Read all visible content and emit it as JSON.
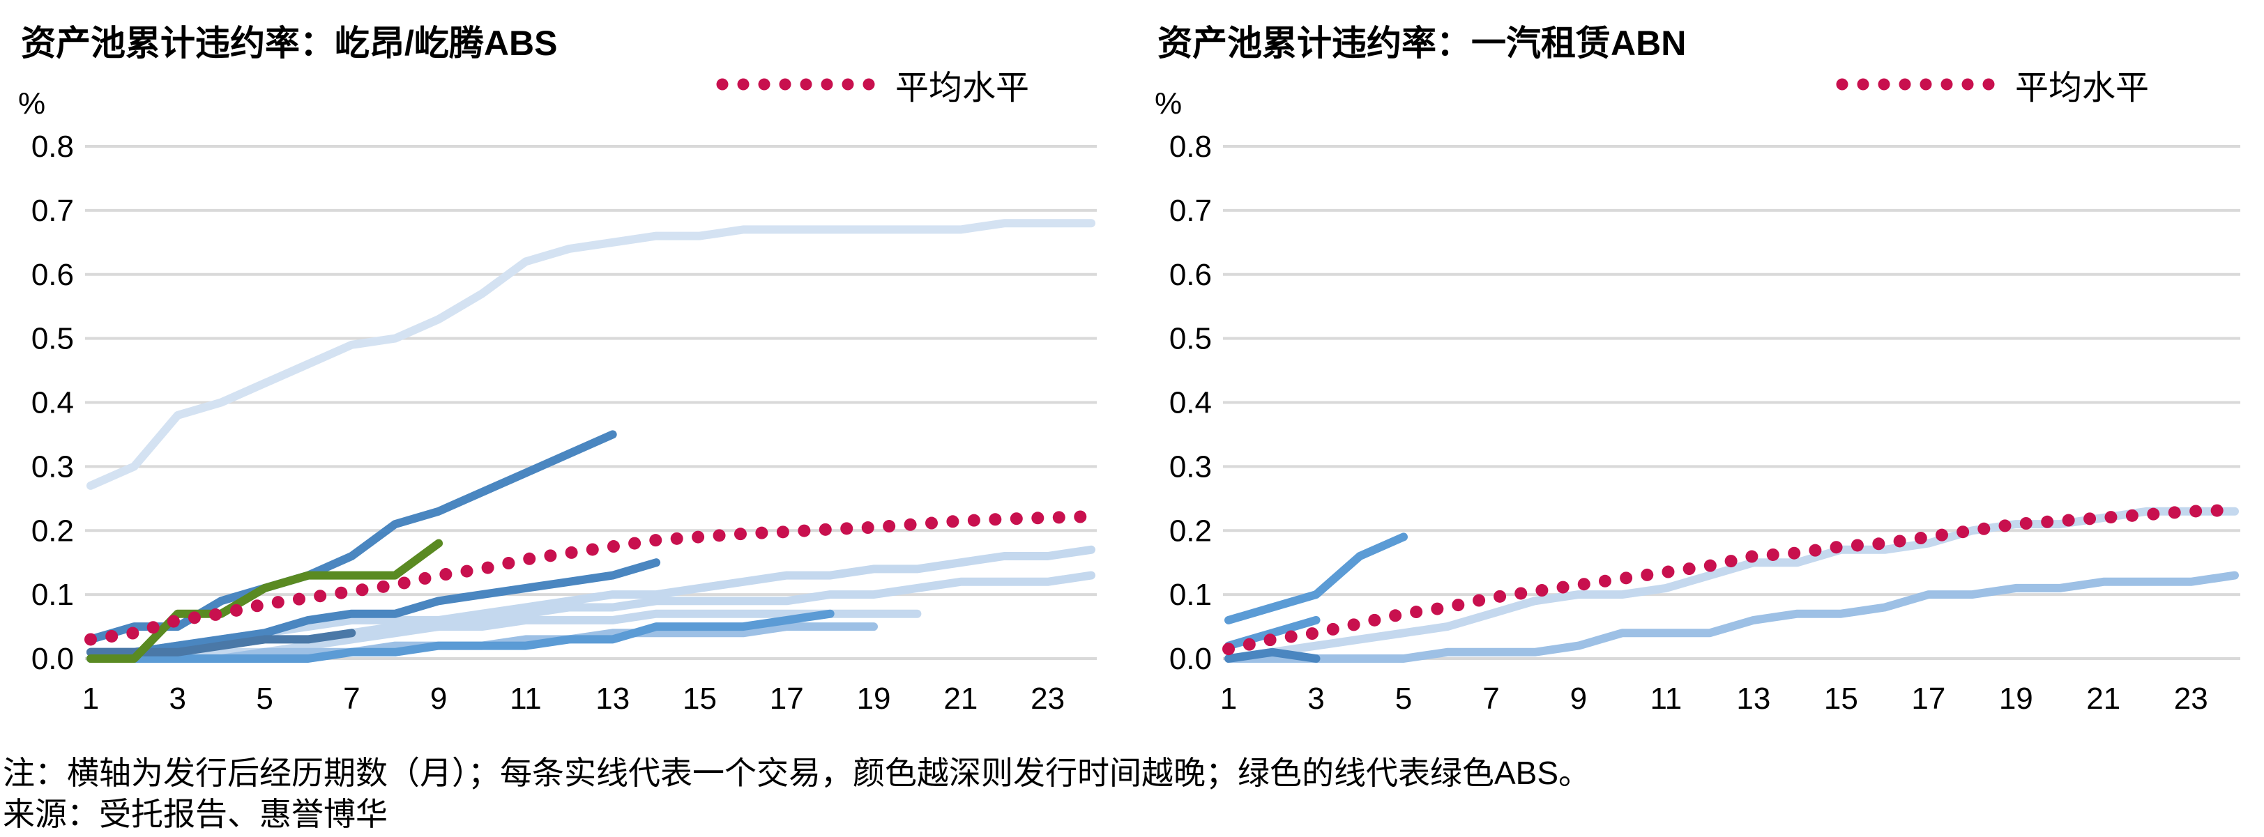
{
  "legend_label": "平均水平",
  "note": "注：横轴为发行后经历期数（月）；每条实线代表一个交易，颜色越深则发行时间越晚；绿色的线代表绿色ABS。",
  "source": "来源：受托报告、惠誉博华",
  "colors": {
    "average": "#C8104E",
    "grid": "#D9D9D9",
    "green": "#5A8A22",
    "blue_darkest": "#4A78A7",
    "blue_dark": "#4A86C0",
    "blue_mid": "#5B9BD5",
    "blue_light": "#9DC0E5",
    "blue_lighter": "#C4D8EE",
    "blue_lightest": "#D4E2F2"
  },
  "chart_data": [
    {
      "type": "line",
      "title": "资产池累计违约率：屹昂/屹腾ABS",
      "ylabel": "%",
      "ylim": [
        0,
        0.8
      ],
      "yticks": [
        "0.0",
        "0.1",
        "0.2",
        "0.3",
        "0.4",
        "0.5",
        "0.6",
        "0.7",
        "0.8"
      ],
      "xlim": [
        1,
        24
      ],
      "xticks": [
        1,
        3,
        5,
        7,
        9,
        11,
        13,
        15,
        17,
        19,
        21,
        23
      ],
      "grid": true,
      "legend": "top-right",
      "average": {
        "name": "平均水平",
        "x": [
          1,
          2,
          3,
          4,
          5,
          6,
          7,
          8,
          9,
          10,
          11,
          12,
          13,
          14,
          15,
          16,
          17,
          18,
          19,
          20,
          21,
          22,
          23,
          24
        ],
        "y": [
          0.03,
          0.04,
          0.06,
          0.07,
          0.085,
          0.095,
          0.105,
          0.115,
          0.13,
          0.14,
          0.155,
          0.165,
          0.175,
          0.185,
          0.19,
          0.195,
          0.198,
          0.202,
          0.205,
          0.21,
          0.215,
          0.218,
          0.22,
          0.222
        ]
      },
      "series": [
        {
          "color": "blue_lightest",
          "x": [
            1,
            2,
            3,
            4,
            5,
            6,
            7,
            8,
            9,
            10,
            11,
            12,
            13,
            14,
            15,
            16,
            17,
            18,
            19,
            20,
            21,
            22,
            23,
            24
          ],
          "y": [
            0.27,
            0.3,
            0.38,
            0.4,
            0.43,
            0.46,
            0.49,
            0.5,
            0.53,
            0.57,
            0.62,
            0.64,
            0.65,
            0.66,
            0.66,
            0.67,
            0.67,
            0.67,
            0.67,
            0.67,
            0.67,
            0.68,
            0.68,
            0.68
          ]
        },
        {
          "color": "blue_lighter",
          "x": [
            1,
            2,
            3,
            4,
            5,
            6,
            7,
            8,
            9,
            10,
            11,
            12,
            13,
            14,
            15,
            16,
            17,
            18,
            19,
            20,
            21,
            22,
            23,
            24
          ],
          "y": [
            0.01,
            0.01,
            0.02,
            0.03,
            0.04,
            0.05,
            0.06,
            0.06,
            0.06,
            0.07,
            0.08,
            0.09,
            0.1,
            0.1,
            0.11,
            0.12,
            0.13,
            0.13,
            0.14,
            0.14,
            0.15,
            0.16,
            0.16,
            0.17
          ]
        },
        {
          "color": "blue_lighter",
          "x": [
            1,
            2,
            3,
            4,
            5,
            6,
            7,
            8,
            9,
            10,
            11,
            12,
            13,
            14,
            15,
            16,
            17,
            18,
            19,
            20,
            21,
            22,
            23,
            24
          ],
          "y": [
            0.0,
            0.0,
            0.0,
            0.01,
            0.01,
            0.02,
            0.03,
            0.04,
            0.05,
            0.06,
            0.07,
            0.08,
            0.08,
            0.09,
            0.09,
            0.09,
            0.09,
            0.1,
            0.1,
            0.11,
            0.12,
            0.12,
            0.12,
            0.13
          ]
        },
        {
          "color": "blue_lighter",
          "x": [
            1,
            2,
            3,
            4,
            5,
            6,
            7,
            8,
            9,
            10,
            11,
            12,
            13,
            14,
            15,
            16,
            17,
            18,
            19,
            20
          ],
          "y": [
            0.01,
            0.01,
            0.02,
            0.02,
            0.03,
            0.03,
            0.04,
            0.05,
            0.05,
            0.05,
            0.06,
            0.06,
            0.06,
            0.07,
            0.07,
            0.07,
            0.07,
            0.07,
            0.07,
            0.07
          ]
        },
        {
          "color": "blue_light",
          "x": [
            1,
            2,
            3,
            4,
            5,
            6,
            7,
            8,
            9,
            10,
            11,
            12,
            13,
            14,
            15,
            16,
            17,
            18,
            19
          ],
          "y": [
            0.0,
            0.0,
            0.0,
            0.0,
            0.01,
            0.01,
            0.01,
            0.02,
            0.02,
            0.02,
            0.03,
            0.03,
            0.04,
            0.04,
            0.04,
            0.04,
            0.05,
            0.05,
            0.05
          ]
        },
        {
          "color": "blue_mid",
          "x": [
            1,
            2,
            3,
            4,
            5,
            6,
            7,
            8,
            9,
            10,
            11,
            12,
            13,
            14,
            15,
            16,
            17,
            18
          ],
          "y": [
            0.0,
            0.0,
            0.0,
            0.0,
            0.0,
            0.0,
            0.01,
            0.01,
            0.02,
            0.02,
            0.02,
            0.03,
            0.03,
            0.05,
            0.05,
            0.05,
            0.06,
            0.07
          ]
        },
        {
          "color": "blue_dark",
          "x": [
            1,
            2,
            3,
            4,
            5,
            6,
            7,
            8,
            9,
            10,
            11,
            12,
            13,
            14
          ],
          "y": [
            0.01,
            0.01,
            0.02,
            0.03,
            0.04,
            0.06,
            0.07,
            0.07,
            0.09,
            0.1,
            0.11,
            0.12,
            0.13,
            0.15
          ]
        },
        {
          "color": "blue_dark",
          "x": [
            1,
            2,
            3,
            4,
            5,
            6,
            7,
            8,
            9,
            10,
            11,
            12,
            13
          ],
          "y": [
            0.03,
            0.05,
            0.05,
            0.09,
            0.11,
            0.13,
            0.16,
            0.21,
            0.23,
            0.26,
            0.29,
            0.32,
            0.35
          ]
        },
        {
          "color": "blue_darkest",
          "x": [
            1,
            2,
            3,
            4,
            5,
            6,
            7
          ],
          "y": [
            0.01,
            0.01,
            0.01,
            0.02,
            0.03,
            0.03,
            0.04
          ]
        },
        {
          "color": "green",
          "x": [
            1,
            2,
            3,
            4,
            5,
            6,
            7,
            8,
            9
          ],
          "y": [
            0.0,
            0.0,
            0.07,
            0.07,
            0.11,
            0.13,
            0.13,
            0.13,
            0.18
          ]
        }
      ]
    },
    {
      "type": "line",
      "title": "资产池累计违约率：一汽租赁ABN",
      "ylabel": "%",
      "ylim": [
        0,
        0.8
      ],
      "yticks": [
        "0.0",
        "0.1",
        "0.2",
        "0.3",
        "0.4",
        "0.5",
        "0.6",
        "0.7",
        "0.8"
      ],
      "xlim": [
        1,
        24
      ],
      "xticks": [
        1,
        3,
        5,
        7,
        9,
        11,
        13,
        15,
        17,
        19,
        21,
        23
      ],
      "grid": true,
      "legend": "top-right",
      "average": {
        "name": "平均水平",
        "x": [
          1,
          2,
          3,
          4,
          5,
          6,
          7,
          8,
          9,
          10,
          11,
          12,
          13,
          14,
          15,
          16,
          17,
          18,
          19,
          20,
          21,
          22,
          23,
          24
        ],
        "y": [
          0.015,
          0.03,
          0.04,
          0.055,
          0.07,
          0.08,
          0.095,
          0.105,
          0.115,
          0.125,
          0.135,
          0.145,
          0.16,
          0.165,
          0.175,
          0.18,
          0.19,
          0.2,
          0.21,
          0.215,
          0.22,
          0.225,
          0.23,
          0.232
        ]
      },
      "series": [
        {
          "color": "blue_lighter",
          "x": [
            1,
            2,
            3,
            4,
            5,
            6,
            7,
            8,
            9,
            10,
            11,
            12,
            13,
            14,
            15,
            16,
            17,
            18,
            19,
            20,
            21,
            22,
            23,
            24
          ],
          "y": [
            0.0,
            0.01,
            0.02,
            0.03,
            0.04,
            0.05,
            0.07,
            0.09,
            0.1,
            0.1,
            0.11,
            0.13,
            0.15,
            0.15,
            0.17,
            0.17,
            0.18,
            0.2,
            0.21,
            0.21,
            0.22,
            0.23,
            0.23,
            0.23
          ]
        },
        {
          "color": "blue_light",
          "x": [
            1,
            2,
            3,
            4,
            5,
            6,
            7,
            8,
            9,
            10,
            11,
            12,
            13,
            14,
            15,
            16,
            17,
            18,
            19,
            20,
            21,
            22,
            23,
            24
          ],
          "y": [
            0.0,
            0.0,
            0.0,
            0.0,
            0.0,
            0.01,
            0.01,
            0.01,
            0.02,
            0.04,
            0.04,
            0.04,
            0.06,
            0.07,
            0.07,
            0.08,
            0.1,
            0.1,
            0.11,
            0.11,
            0.12,
            0.12,
            0.12,
            0.13
          ]
        },
        {
          "color": "blue_mid",
          "x": [
            1,
            2,
            3,
            4,
            5
          ],
          "y": [
            0.06,
            0.08,
            0.1,
            0.16,
            0.19
          ]
        },
        {
          "color": "blue_mid",
          "x": [
            1,
            2,
            3
          ],
          "y": [
            0.02,
            0.04,
            0.06
          ]
        },
        {
          "color": "blue_dark",
          "x": [
            1,
            2,
            3
          ],
          "y": [
            0.0,
            0.01,
            0.0
          ]
        }
      ]
    }
  ]
}
